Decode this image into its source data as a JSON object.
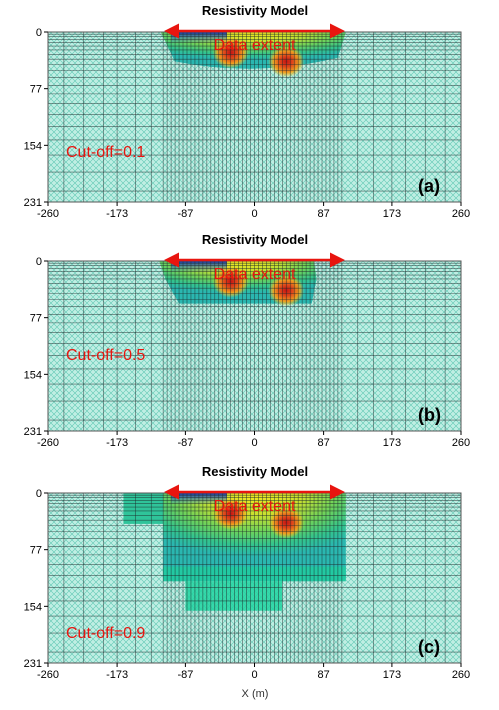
{
  "colors": {
    "background_fill": "#bfeee3",
    "hatch": "#5fc7b4",
    "grid": "#1d2b2b",
    "annotation": "#e8150f",
    "arrow": "#e8150f"
  },
  "chart_data": [
    {
      "type": "heatmap",
      "title": "Resistivity Model",
      "annotation": "Data extent",
      "data_extent": [
        -100,
        100
      ],
      "cutoff_label": "Cut-off=0.1",
      "panel_label": "(a)",
      "xlabel": "",
      "x_ticks": [
        "-260",
        "-173",
        "-87",
        "0",
        "87",
        "173",
        "260"
      ],
      "y_ticks": [
        "0",
        "77",
        "154",
        "231"
      ],
      "xlim": [
        -260,
        260
      ],
      "ylim": [
        0,
        231
      ],
      "anomalies": [
        {
          "x": -30,
          "depth": 28,
          "kind": "conductive"
        },
        {
          "x": 40,
          "depth": 40,
          "kind": "conductive"
        }
      ]
    },
    {
      "type": "heatmap",
      "title": "Resistivity Model",
      "annotation": "Data extent",
      "data_extent": [
        -100,
        100
      ],
      "cutoff_label": "Cut-off=0.5",
      "panel_label": "(b)",
      "xlabel": "",
      "x_ticks": [
        "-260",
        "-173",
        "-87",
        "0",
        "87",
        "173",
        "260"
      ],
      "y_ticks": [
        "0",
        "77",
        "154",
        "231"
      ],
      "xlim": [
        -260,
        260
      ],
      "ylim": [
        0,
        231
      ],
      "anomalies": [
        {
          "x": -30,
          "depth": 28,
          "kind": "conductive"
        },
        {
          "x": 40,
          "depth": 40,
          "kind": "conductive"
        }
      ]
    },
    {
      "type": "heatmap",
      "title": "Resistivity Model",
      "annotation": "Data extent",
      "data_extent": [
        -100,
        100
      ],
      "cutoff_label": "Cut-off=0.9",
      "panel_label": "(c)",
      "xlabel": "X (m)",
      "x_ticks": [
        "-260",
        "-173",
        "-87",
        "0",
        "87",
        "173",
        "260"
      ],
      "y_ticks": [
        "0",
        "77",
        "154",
        "231"
      ],
      "xlim": [
        -260,
        260
      ],
      "ylim": [
        0,
        231
      ],
      "anomalies": [
        {
          "x": -30,
          "depth": 28,
          "kind": "conductive"
        },
        {
          "x": 40,
          "depth": 40,
          "kind": "conductive"
        }
      ]
    }
  ]
}
